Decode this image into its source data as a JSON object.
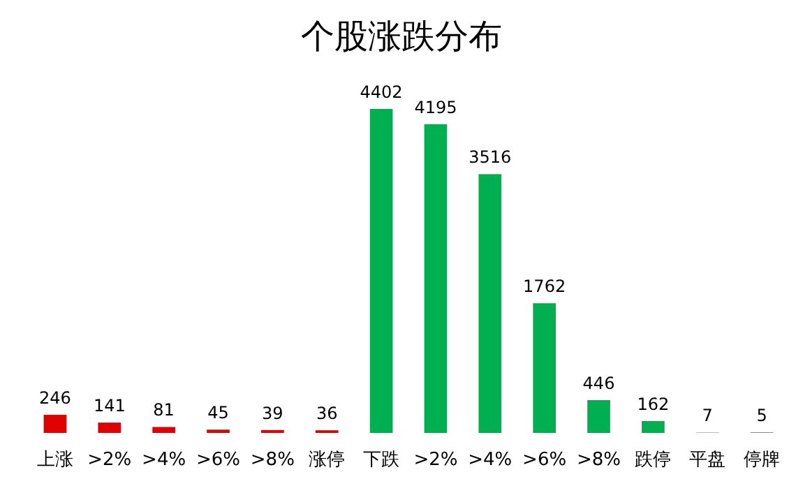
{
  "chart_data": {
    "type": "bar",
    "title": "个股涨跌分布",
    "categories": [
      "上涨",
      ">2%",
      ">4%",
      ">6%",
      ">8%",
      "涨停",
      "下跌",
      ">2%",
      ">4%",
      ">6%",
      ">8%",
      "跌停",
      "平盘",
      "停牌"
    ],
    "values": [
      246,
      141,
      81,
      45,
      39,
      36,
      4402,
      4195,
      3516,
      1762,
      446,
      162,
      7,
      5
    ],
    "colors": [
      "#e00000",
      "#e00000",
      "#e00000",
      "#e00000",
      "#e00000",
      "#e00000",
      "#00b050",
      "#00b050",
      "#00b050",
      "#00b050",
      "#00b050",
      "#00b050",
      "#a6a6a6",
      "#262626"
    ],
    "data_labels": true
  }
}
